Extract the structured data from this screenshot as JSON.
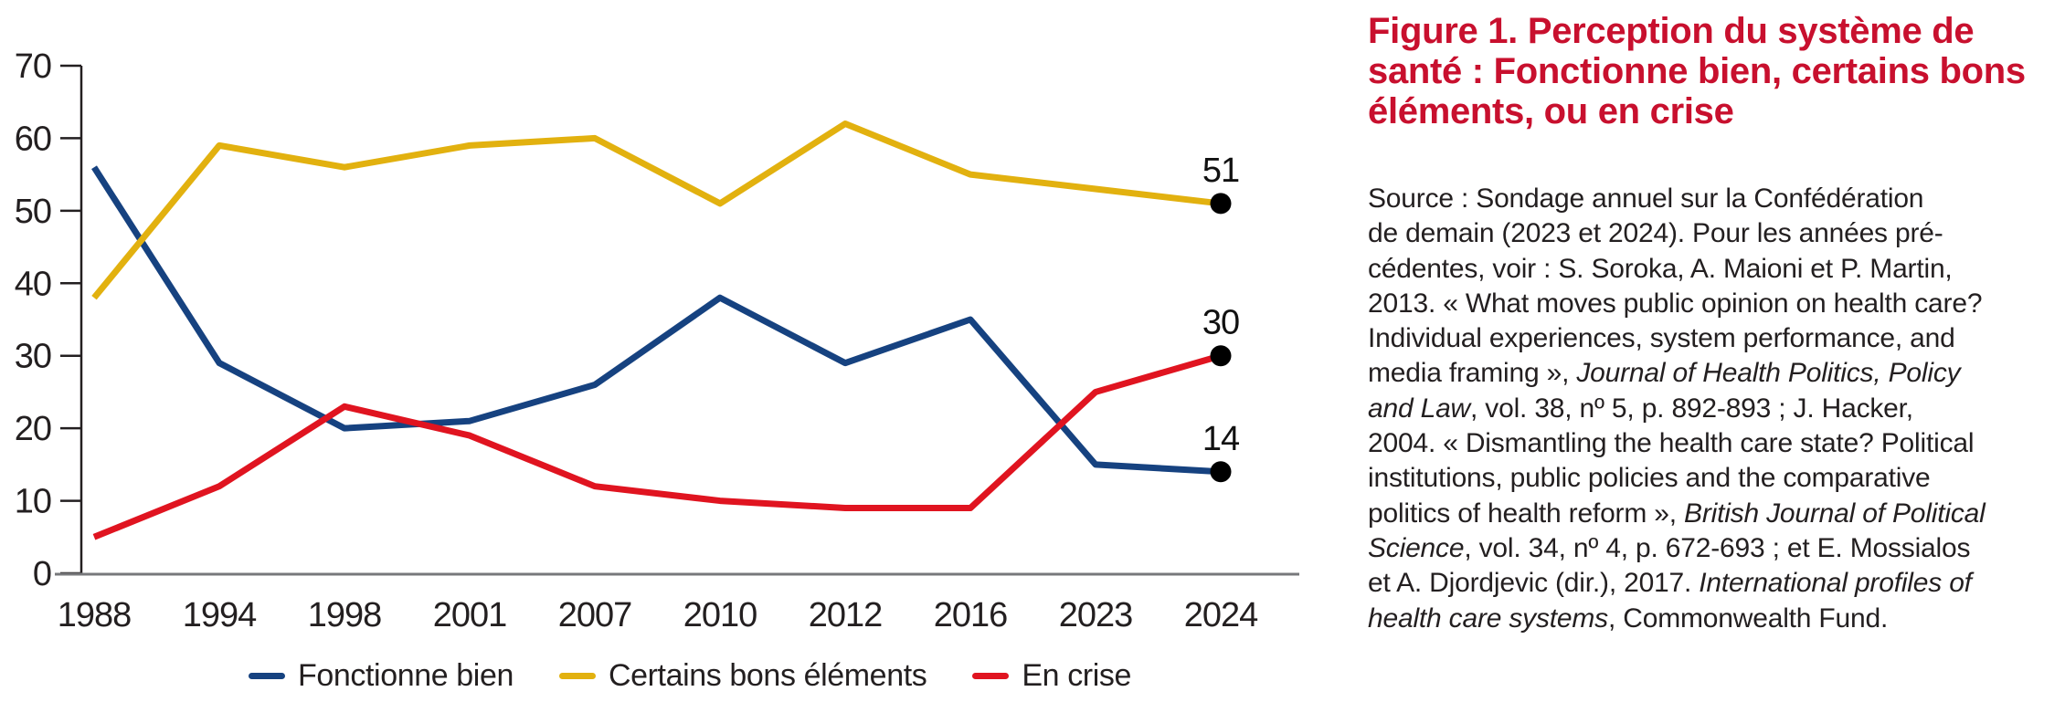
{
  "figure": {
    "title": "Figure 1. Perception du système de santé : Fonctionne bien, certains bons éléments, ou en crise",
    "title_color": "#c8102e",
    "title_lines": [
      [
        {
          "t": "Figure 1. Perception du système de"
        }
      ],
      [
        {
          "t": "santé : Fonctionne bien, certains bons"
        }
      ],
      [
        {
          "t": "éléments, ou en crise"
        }
      ]
    ]
  },
  "source": {
    "lines": [
      [
        {
          "t": "Source : Sondage annuel sur la Confédération"
        }
      ],
      [
        {
          "t": "de demain (2023 et 2024). Pour les années pré-"
        }
      ],
      [
        {
          "t": "cédentes, voir : S. Soroka, A. Maioni et P. Martin,"
        }
      ],
      [
        {
          "t": "2013. « What moves public opinion on health care?"
        }
      ],
      [
        {
          "t": "Individual experiences, system performance, and"
        }
      ],
      [
        {
          "t": "media framing », "
        },
        {
          "t": "Journal of Health Politics, Policy",
          "i": true
        }
      ],
      [
        {
          "t": "and Law",
          "i": true
        },
        {
          "t": ", vol. 38, nº 5, p. 892-893 ; J. Hacker,"
        }
      ],
      [
        {
          "t": "2004. « Dismantling the health care state? Political"
        }
      ],
      [
        {
          "t": "institutions, public policies and the comparative"
        }
      ],
      [
        {
          "t": "politics of health reform », "
        },
        {
          "t": "British Journal of Political",
          "i": true
        }
      ],
      [
        {
          "t": "Science",
          "i": true
        },
        {
          "t": ", vol. 34, nº 4, p. 672-693 ; et E. Mossialos"
        }
      ],
      [
        {
          "t": "et A. Djordjevic (dir.), 2017. "
        },
        {
          "t": "International profiles of",
          "i": true
        }
      ],
      [
        {
          "t": "health care systems",
          "i": true
        },
        {
          "t": ", Commonwealth Fund."
        }
      ]
    ]
  },
  "chart_data": {
    "type": "line",
    "x_scale": "categorical",
    "categories": [
      "1988",
      "1994",
      "1998",
      "2001",
      "2007",
      "2010",
      "2012",
      "2016",
      "2023",
      "2024"
    ],
    "series": [
      {
        "name": "Fonctionne bien",
        "color": "#164280",
        "values": [
          56,
          29,
          20,
          21,
          26,
          38,
          29,
          35,
          15,
          14
        ],
        "end_label": "14"
      },
      {
        "name": "Certains bons éléments",
        "color": "#e2b10f",
        "values": [
          38,
          59,
          56,
          59,
          60,
          51,
          62,
          55,
          53,
          51
        ],
        "end_label": "51"
      },
      {
        "name": "En crise",
        "color": "#e01420",
        "values": [
          5,
          12,
          23,
          19,
          12,
          10,
          9,
          9,
          25,
          30
        ],
        "end_label": "30"
      }
    ],
    "ylim": [
      0,
      70
    ],
    "yticks": [
      "0",
      "10",
      "20",
      "30",
      "40",
      "50",
      "60",
      "70"
    ],
    "grid": false,
    "legend_position": "bottom",
    "end_marker_color": "#000000",
    "axis_line_color": "#231f20",
    "x_axis_line_color": "#77787b",
    "tick_label_color": "#231f20"
  },
  "legend": {
    "items": [
      {
        "label": "Fonctionne bien",
        "color": "#164280"
      },
      {
        "label": "Certains bons éléments",
        "color": "#e2b10f"
      },
      {
        "label": "En crise",
        "color": "#e01420"
      }
    ]
  }
}
